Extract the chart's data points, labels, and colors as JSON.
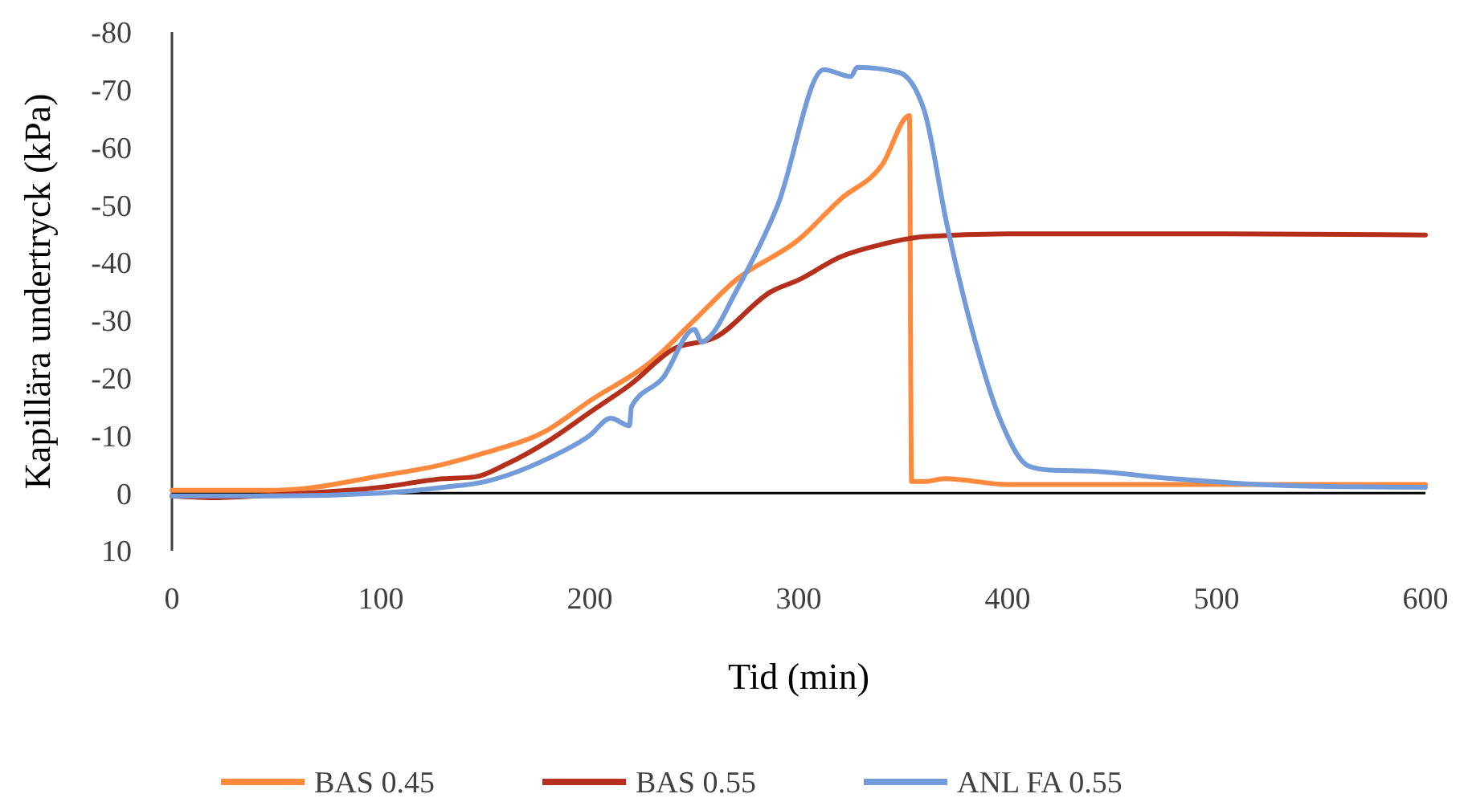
{
  "chart_data": {
    "type": "line",
    "xlabel": "Tid (min)",
    "ylabel": "Kapillära undertryck (kPa)",
    "xlim": [
      0,
      600
    ],
    "xticks": [
      0,
      100,
      200,
      300,
      400,
      500,
      600
    ],
    "ylim": [
      10,
      -80
    ],
    "yticks": [
      -80,
      -70,
      -60,
      -50,
      -40,
      -30,
      -20,
      -10,
      0,
      10
    ],
    "legend": "bottom",
    "line_style": "solid",
    "marker": "none",
    "series": [
      {
        "name": "BAS 0.45",
        "color": "#ff8a3d",
        "x": [
          0,
          50,
          100,
          130,
          150,
          180,
          200,
          230,
          250,
          270,
          300,
          320,
          340,
          353,
          354,
          360,
          370,
          400,
          500,
          600
        ],
        "values": [
          -0.5,
          -0.5,
          -3,
          -5,
          -7,
          -11,
          -16,
          -23,
          -30,
          -37,
          -44,
          -51,
          -57,
          -65.5,
          -2,
          -2,
          -2.5,
          -1.5,
          -1.5,
          -1.5
        ]
      },
      {
        "name": "BAS 0.55",
        "color": "#b5301c",
        "x": [
          0,
          20,
          50,
          100,
          130,
          145,
          160,
          180,
          200,
          220,
          240,
          260,
          287,
          300,
          320,
          338,
          360,
          400,
          500,
          600
        ],
        "values": [
          0.5,
          0.8,
          0.3,
          -1,
          -2.5,
          -2.8,
          -5,
          -9,
          -14,
          -19,
          -25,
          -27,
          -35,
          -37,
          -41,
          -43,
          -44.5,
          -45,
          -45,
          -44.8
        ]
      },
      {
        "name": "ANL FA 0.55",
        "color": "#739bd9",
        "x": [
          0,
          50,
          100,
          130,
          150,
          180,
          200,
          210,
          219,
          220,
          235,
          250,
          253.6,
          257,
          270,
          290,
          312,
          325,
          328,
          348,
          360,
          371,
          384,
          397,
          410,
          420,
          441,
          479,
          543,
          600
        ],
        "values": [
          0.5,
          0.5,
          0,
          -1,
          -2,
          -6,
          -10,
          -13,
          -11.7,
          -15,
          -20,
          -28.4,
          -26.2,
          -27,
          -35,
          -50,
          -73.5,
          -72.3,
          -73.9,
          -73,
          -66.5,
          -46.5,
          -27,
          -12.3,
          -4.7,
          -4,
          -3.8,
          -2.5,
          -1.2,
          -1
        ]
      }
    ]
  }
}
